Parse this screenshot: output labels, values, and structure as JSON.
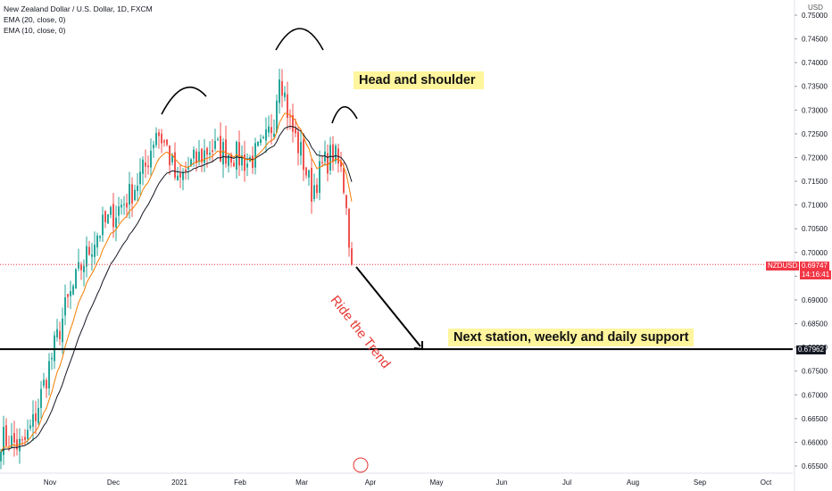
{
  "legend": {
    "symbol": "New Zealand Dollar / U.S. Dollar, 1D, FXCM",
    "ema20": "EMA (20, close, 0)",
    "ema10": "EMA (10, close, 0)"
  },
  "currency": "USD",
  "price_tag": {
    "symbol": "NZDUSD",
    "price": "0.69747",
    "countdown": "14:16:41"
  },
  "support_tag": "0.67962",
  "annotations": {
    "head_and_shoulder": "Head and shoulder",
    "next_station": "Next station, weekly and daily support",
    "ride_trend": "Ride the Trend"
  },
  "colors": {
    "up": "#26a69a",
    "down": "#ef5350",
    "ema20": "#131722",
    "ema10": "#f57c00",
    "callout": "#fff59d",
    "arrow_text": "#e53935"
  },
  "chart_data": {
    "type": "candlestick",
    "title": "New Zealand Dollar / U.S. Dollar, 1D, FXCM",
    "ylim": [
      0.653,
      0.751
    ],
    "yticks": [
      0.655,
      0.66,
      0.665,
      0.67,
      0.675,
      0.68,
      0.685,
      0.69,
      0.695,
      0.7,
      0.705,
      0.71,
      0.715,
      0.72,
      0.725,
      0.73,
      0.735,
      0.74,
      0.745,
      0.75
    ],
    "ytick_labels": [
      "0.65500",
      "0.66000",
      "0.66500",
      "0.67000",
      "0.67500",
      "0.68000",
      "0.68500",
      "0.69000",
      "0.69500",
      "0.70000",
      "0.70500",
      "0.71000",
      "0.71500",
      "0.72000",
      "0.72500",
      "0.73000",
      "0.73500",
      "0.74000",
      "0.74500",
      "0.75000"
    ],
    "xtick_labels": [
      "Nov",
      "Dec",
      "2021",
      "Feb",
      "Mar",
      "Apr",
      "May",
      "Jun",
      "Jul",
      "Aug",
      "Sep",
      "Oct"
    ],
    "last_price": 0.69747,
    "support_level": 0.67962,
    "close_waypoints": [
      [
        0,
        0.661
      ],
      [
        8,
        0.659
      ],
      [
        12,
        0.664
      ],
      [
        18,
        0.676
      ],
      [
        24,
        0.688
      ],
      [
        30,
        0.697
      ],
      [
        36,
        0.704
      ],
      [
        42,
        0.708
      ],
      [
        48,
        0.712
      ],
      [
        54,
        0.718
      ],
      [
        58,
        0.726
      ],
      [
        62,
        0.722
      ],
      [
        66,
        0.714
      ],
      [
        70,
        0.718
      ],
      [
        78,
        0.722
      ],
      [
        86,
        0.721
      ],
      [
        92,
        0.719
      ],
      [
        98,
        0.722
      ],
      [
        102,
        0.728
      ],
      [
        104,
        0.739
      ],
      [
        106,
        0.733
      ],
      [
        108,
        0.727
      ],
      [
        112,
        0.721
      ],
      [
        116,
        0.713
      ],
      [
        120,
        0.718
      ],
      [
        124,
        0.721
      ],
      [
        127,
        0.717
      ],
      [
        129,
        0.711
      ],
      [
        130,
        0.701
      ],
      [
        131,
        0.6975
      ]
    ],
    "series": [
      {
        "name": "EMA (20, close, 0)",
        "source": "close",
        "period": 20
      },
      {
        "name": "EMA (10, close, 0)",
        "source": "close",
        "period": 10
      }
    ]
  }
}
